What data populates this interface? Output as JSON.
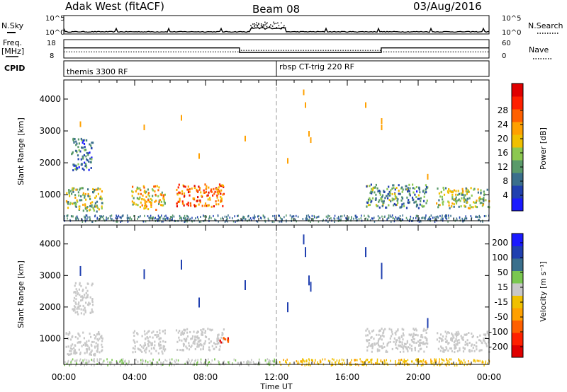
{
  "header": {
    "station": "Adak West (fitACF)",
    "beam": "Beam 08",
    "date": "03/Aug/2016"
  },
  "top_panels": {
    "nsky_label": "N.Sky",
    "nsky_ticks": [
      "10^5",
      "10^0"
    ],
    "nsearch_label": "N.Search",
    "freq_label": "Freq.",
    "freq_unit": "[MHz]",
    "freq_ticks": [
      "18",
      "8"
    ],
    "nave_label": "Nave",
    "nave_ticks": [
      "60",
      "0"
    ],
    "cpid_label": "CPID",
    "cpid_segments": [
      "themis 3300 RF",
      "rbsp CT-trig 220 RF"
    ]
  },
  "axis_labels": {
    "y": "Slant Range [km]",
    "x": "Time UT",
    "power_bar": "Power [dB]",
    "velocity_bar": "Velocity [m s⁻¹]"
  },
  "colors": {
    "power_scale": [
      "#1a1aff",
      "#2040b0",
      "#3a6f8c",
      "#5a9a6a",
      "#8cc850",
      "#f0c000",
      "#ffa000",
      "#ff6000",
      "#ff2000",
      "#e00000"
    ],
    "velocity_scale": [
      "#1a1aff",
      "#2040b0",
      "#3a6f8c",
      "#7ac850",
      "#c8c8c8",
      "#f0c000",
      "#ffa000",
      "#ff6000",
      "#ff2000",
      "#e00000"
    ]
  },
  "chart_data": [
    {
      "type": "line",
      "name": "N.Sky / N.Search",
      "y_scale": "log",
      "ylim": [
        1,
        100000
      ],
      "yticks": [
        "10^0",
        "10^5"
      ]
    },
    {
      "type": "line",
      "name": "Freq / Nave",
      "xlim_hours": [
        0,
        24
      ],
      "frequency_mhz": {
        "x": [
          "00:00",
          "09:55",
          "09:55",
          "17:55",
          "17:55",
          "24:00"
        ],
        "y": [
          13.5,
          13.5,
          11,
          11,
          13.5,
          13.5
        ]
      },
      "nave": {
        "x": [
          "00:00",
          "09:55",
          "09:55",
          "17:55",
          "17:55",
          "24:00"
        ],
        "y": [
          20,
          20,
          25,
          25,
          20,
          20
        ]
      },
      "yticks_freq": [
        "8",
        "18"
      ],
      "yticks_nave": [
        "0",
        "60"
      ]
    },
    {
      "type": "heatmap",
      "title": "Power [dB]",
      "xlabel": "",
      "ylabel": "Slant Range [km]",
      "xticks": [
        "00:00",
        "04:00",
        "08:00",
        "12:00",
        "16:00",
        "20:00",
        "00:00"
      ],
      "xlim_hours": [
        0,
        24
      ],
      "ylim": [
        180,
        4600
      ],
      "yticks": [
        "1000",
        "2000",
        "3000",
        "4000"
      ],
      "colorbar_ticks": [
        "4",
        "8",
        "12",
        "16",
        "20",
        "24",
        "28"
      ],
      "colorbar_range": [
        0,
        32
      ],
      "marker_line_hour": 12,
      "echo_regions": [
        {
          "t_start": 0.1,
          "t_end": 2.2,
          "r_start": 500,
          "r_end": 1250,
          "value": 14
        },
        {
          "t_start": 3.8,
          "t_end": 5.7,
          "r_start": 550,
          "r_end": 1300,
          "value": 18
        },
        {
          "t_start": 6.3,
          "t_end": 9.0,
          "r_start": 650,
          "r_end": 1350,
          "value": 24
        },
        {
          "t_start": 0.4,
          "t_end": 1.6,
          "r_start": 1800,
          "r_end": 2800,
          "value": 8
        },
        {
          "t_start": 17.0,
          "t_end": 20.5,
          "r_start": 600,
          "r_end": 1350,
          "value": 10
        },
        {
          "t_start": 21.0,
          "t_end": 24.0,
          "r_start": 600,
          "r_end": 1250,
          "value": 14
        }
      ]
    },
    {
      "type": "heatmap",
      "title": "Velocity [m s⁻¹]",
      "xlabel": "Time UT",
      "ylabel": "Slant Range [km]",
      "xticks": [
        "00:00",
        "04:00",
        "08:00",
        "12:00",
        "16:00",
        "20:00",
        "00:00"
      ],
      "xlim_hours": [
        0,
        24
      ],
      "ylim": [
        180,
        4600
      ],
      "yticks": [
        "1000",
        "2000",
        "3000",
        "4000"
      ],
      "colorbar_ticks": [
        "200",
        "100",
        "50",
        "15",
        "-15",
        "-50",
        "-100",
        "-200"
      ],
      "colorbar_range": [
        -250,
        250
      ],
      "marker_line_hour": 12,
      "echo_regions": [
        {
          "t_start": 0.1,
          "t_end": 2.2,
          "r_start": 500,
          "r_end": 1250,
          "value": 0
        },
        {
          "t_start": 3.8,
          "t_end": 5.7,
          "r_start": 550,
          "r_end": 1300,
          "value": 0
        },
        {
          "t_start": 6.3,
          "t_end": 9.0,
          "r_start": 650,
          "r_end": 1350,
          "value": 0
        },
        {
          "t_start": 8.7,
          "t_end": 9.3,
          "r_start": 900,
          "r_end": 1100,
          "value": -200
        },
        {
          "t_start": 0.4,
          "t_end": 1.6,
          "r_start": 1800,
          "r_end": 2800,
          "value": 0
        },
        {
          "t_start": 17.0,
          "t_end": 20.5,
          "r_start": 600,
          "r_end": 1350,
          "value": 0
        },
        {
          "t_start": 21.0,
          "t_end": 24.0,
          "r_start": 600,
          "r_end": 1250,
          "value": 0
        }
      ]
    }
  ]
}
